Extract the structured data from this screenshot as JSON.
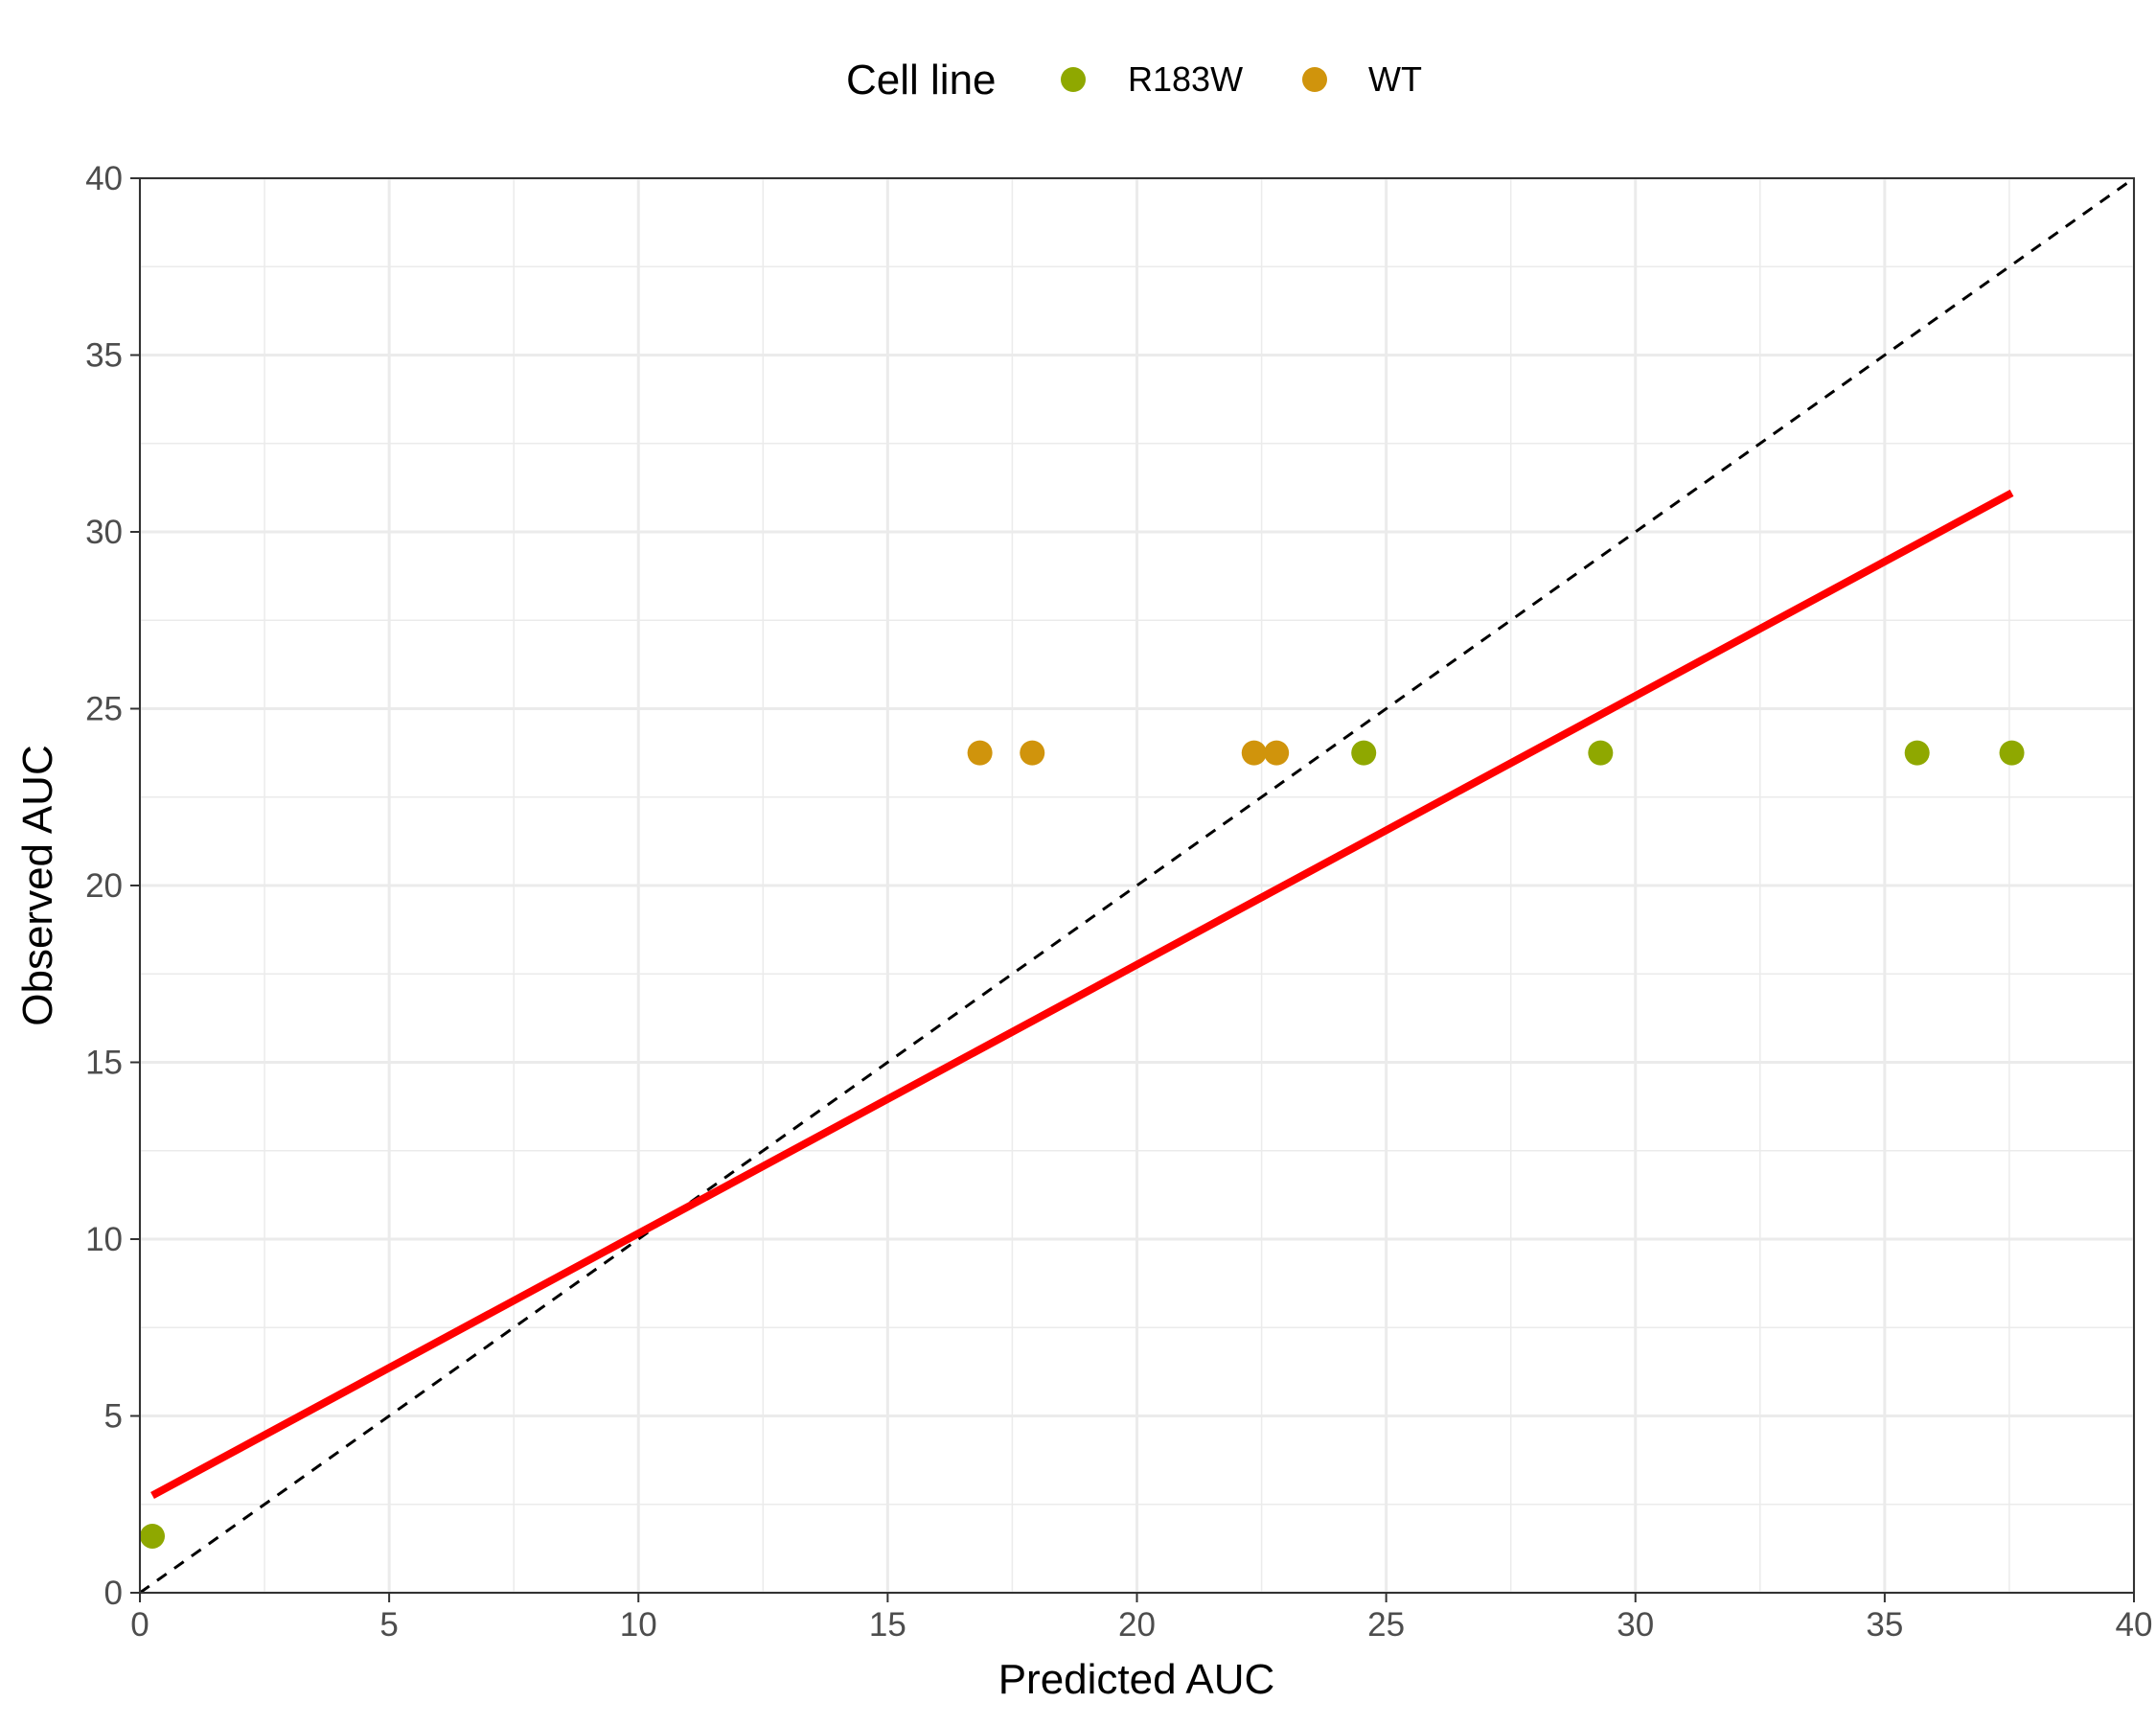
{
  "chart_data": {
    "type": "scatter",
    "xlabel": "Predicted AUC",
    "ylabel": "Observed AUC",
    "xlim": [
      0,
      40
    ],
    "ylim": [
      0,
      40
    ],
    "xticks": [
      0,
      5,
      10,
      15,
      20,
      25,
      30,
      35,
      40
    ],
    "yticks": [
      0,
      5,
      10,
      15,
      20,
      25,
      30,
      35,
      40
    ],
    "grid": true,
    "legend": {
      "title": "Cell line",
      "position": "top",
      "entries": [
        {
          "name": "R183W",
          "color": "#8fa800"
        },
        {
          "name": "WT",
          "color": "#d0940c"
        }
      ]
    },
    "series": [
      {
        "name": "R183W",
        "color": "#8fa800",
        "points": [
          {
            "x": 0.25,
            "y": 1.6
          },
          {
            "x": 24.55,
            "y": 23.75
          },
          {
            "x": 29.3,
            "y": 23.75
          },
          {
            "x": 35.65,
            "y": 23.75
          },
          {
            "x": 37.55,
            "y": 23.75
          }
        ]
      },
      {
        "name": "WT",
        "color": "#d0940c",
        "points": [
          {
            "x": 16.85,
            "y": 23.75
          },
          {
            "x": 17.9,
            "y": 23.75
          },
          {
            "x": 22.35,
            "y": 23.75
          },
          {
            "x": 22.8,
            "y": 23.75
          }
        ]
      }
    ],
    "lines": [
      {
        "kind": "identity",
        "style": "dashed",
        "color": "#000000",
        "from": [
          0,
          0
        ],
        "to": [
          40,
          40
        ]
      },
      {
        "kind": "fit",
        "style": "solid",
        "color": "#ff0000",
        "from": [
          0.25,
          2.75
        ],
        "to": [
          37.55,
          31.1
        ]
      }
    ]
  }
}
